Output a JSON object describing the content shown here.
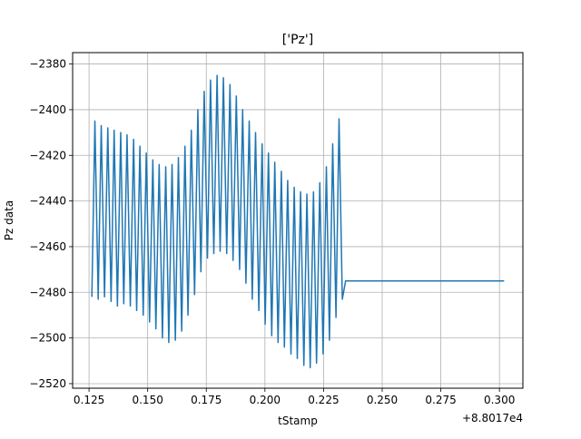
{
  "chart_data": {
    "type": "line",
    "title": "['Pz']",
    "xlabel": "tStamp",
    "ylabel": "Pz data",
    "x_offset_label": "+8.8017e4",
    "xlim": [
      0.118,
      0.31
    ],
    "ylim": [
      -2522,
      -2375
    ],
    "x_ticks": [
      0.125,
      0.15,
      0.175,
      0.2,
      0.225,
      0.25,
      0.275,
      0.3
    ],
    "x_tick_labels": [
      "0.125",
      "0.150",
      "0.175",
      "0.200",
      "0.225",
      "0.250",
      "0.275",
      "0.300"
    ],
    "y_ticks": [
      -2520,
      -2500,
      -2480,
      -2460,
      -2440,
      -2420,
      -2400,
      -2380
    ],
    "y_tick_labels": [
      "−2520",
      "−2500",
      "−2480",
      "−2460",
      "−2440",
      "−2420",
      "−2400",
      "−2380"
    ],
    "grid": true,
    "line_color": "#1f77b4",
    "series": [
      {
        "x": [
          0.1262,
          0.1275,
          0.1289,
          0.1302,
          0.1316,
          0.133,
          0.1344,
          0.1357,
          0.1371,
          0.1385,
          0.1398,
          0.1412,
          0.1426,
          0.144,
          0.1453,
          0.1467,
          0.1481,
          0.1494,
          0.1508,
          0.1522,
          0.1535,
          0.1549,
          0.1563,
          0.1577,
          0.159,
          0.1604,
          0.1618,
          0.1631,
          0.1645,
          0.1659,
          0.1672,
          0.1686,
          0.17,
          0.1714,
          0.1727,
          0.1741,
          0.1755,
          0.1768,
          0.1782,
          0.1796,
          0.1809,
          0.1823,
          0.1837,
          0.1851,
          0.1864,
          0.1878,
          0.1892,
          0.1905,
          0.1919,
          0.1933,
          0.1946,
          0.196,
          0.1974,
          0.1988,
          0.2001,
          0.2015,
          0.2029,
          0.2042,
          0.2056,
          0.207,
          0.2083,
          0.2097,
          0.2111,
          0.2125,
          0.2138,
          0.2152,
          0.2166,
          0.2179,
          0.2193,
          0.2207,
          0.222,
          0.2234,
          0.2248,
          0.2262,
          0.2275,
          0.2289,
          0.2303,
          0.2316,
          0.233,
          0.2344,
          0.2357,
          0.2371,
          0.2385,
          0.2399,
          0.2412,
          0.2426,
          0.244,
          0.2453,
          0.2467,
          0.2481,
          0.2494,
          0.2508,
          0.2522,
          0.2536,
          0.2549,
          0.2563,
          0.2577,
          0.259,
          0.2604,
          0.2618,
          0.2631,
          0.2645,
          0.2659,
          0.2673,
          0.2686,
          0.27,
          0.2714,
          0.2727,
          0.2741,
          0.2755,
          0.2768,
          0.2782,
          0.2796,
          0.281,
          0.2823,
          0.2837,
          0.2851,
          0.2864,
          0.2878,
          0.2892,
          0.2905,
          0.2919,
          0.2933,
          0.2947,
          0.296,
          0.2974,
          0.2988,
          0.3001,
          0.3015,
          0.302
        ],
        "y": [
          -2482,
          -2405,
          -2483,
          -2407,
          -2482,
          -2408,
          -2484,
          -2409,
          -2486,
          -2410,
          -2485,
          -2411,
          -2486,
          -2413,
          -2488,
          -2416,
          -2490,
          -2419,
          -2493,
          -2422,
          -2496,
          -2424,
          -2500,
          -2425,
          -2502,
          -2424,
          -2501,
          -2421,
          -2497,
          -2416,
          -2490,
          -2409,
          -2481,
          -2400,
          -2471,
          -2392,
          -2465,
          -2387,
          -2463,
          -2385,
          -2462,
          -2386,
          -2463,
          -2389,
          -2466,
          -2394,
          -2470,
          -2400,
          -2476,
          -2405,
          -2483,
          -2410,
          -2488,
          -2415,
          -2494,
          -2419,
          -2499,
          -2423,
          -2502,
          -2427,
          -2504,
          -2431,
          -2507,
          -2434,
          -2509,
          -2436,
          -2512,
          -2437,
          -2513,
          -2436,
          -2511,
          -2432,
          -2507,
          -2425,
          -2501,
          -2415,
          -2491,
          -2404,
          -2483,
          -2475,
          -2475,
          -2475,
          -2475,
          -2475,
          -2475,
          -2475,
          -2475,
          -2475,
          -2475,
          -2475,
          -2475,
          -2475,
          -2475,
          -2475,
          -2475,
          -2475,
          -2475,
          -2475,
          -2475,
          -2475,
          -2475,
          -2475,
          -2475,
          -2475,
          -2475,
          -2475,
          -2475,
          -2475,
          -2475,
          -2475,
          -2475,
          -2475,
          -2475,
          -2475,
          -2475,
          -2475,
          -2475,
          -2475,
          -2475,
          -2475,
          -2475,
          -2475,
          -2475,
          -2475,
          -2475,
          -2475,
          -2475,
          -2475,
          -2475,
          -2475
        ]
      }
    ]
  }
}
